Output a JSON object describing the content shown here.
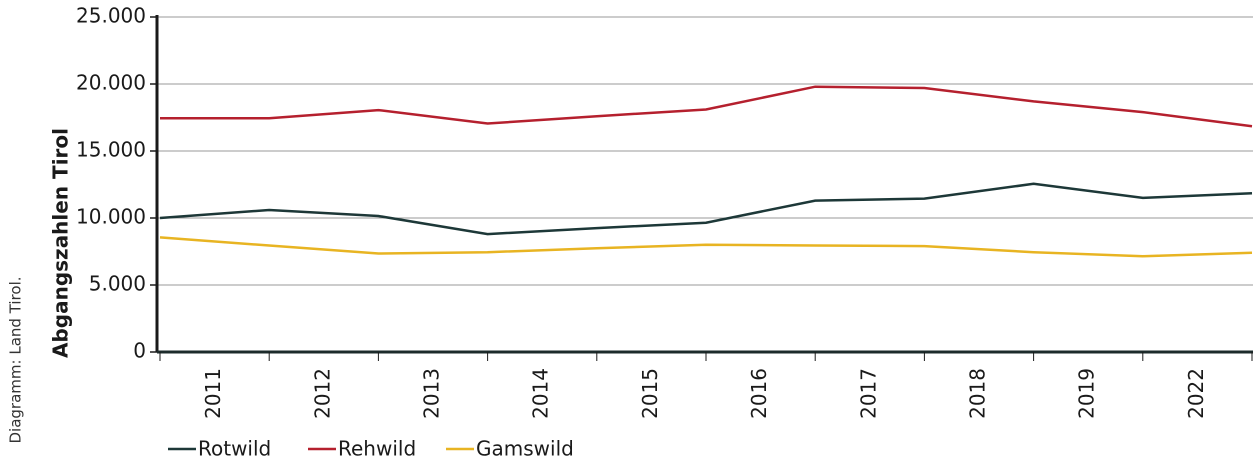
{
  "chart_data": {
    "type": "line",
    "source": "Diagramm: Land Tirol.",
    "y_label": "Abgangszahlen Tirol",
    "categories": [
      "2011",
      "2012",
      "2013",
      "2014",
      "2015",
      "2016",
      "2017",
      "2018",
      "2019",
      "2022",
      null
    ],
    "series": [
      {
        "name": "Rotwild",
        "color": "#1d3838",
        "values": [
          10000,
          10600,
          10150,
          8800,
          9250,
          9650,
          11300,
          11450,
          12550,
          11500,
          11850
        ]
      },
      {
        "name": "Rehwild",
        "color": "#b5202e",
        "values": [
          17450,
          17450,
          18050,
          17050,
          17600,
          18100,
          19800,
          19700,
          18700,
          17900,
          16850
        ]
      },
      {
        "name": "Gamswild",
        "color": "#e8b422",
        "values": [
          8550,
          7950,
          7350,
          7450,
          7750,
          8000,
          7950,
          7900,
          7450,
          7150,
          7400
        ]
      }
    ],
    "ylim": [
      0,
      25000
    ],
    "yticks": [
      {
        "value": 0,
        "label": "0"
      },
      {
        "value": 5000,
        "label": "5.000"
      },
      {
        "value": 10000,
        "label": "10.000"
      },
      {
        "value": 15000,
        "label": "15.000"
      },
      {
        "value": 20000,
        "label": "20.000"
      },
      {
        "value": 25000,
        "label": "25.000"
      }
    ],
    "grid": true
  }
}
